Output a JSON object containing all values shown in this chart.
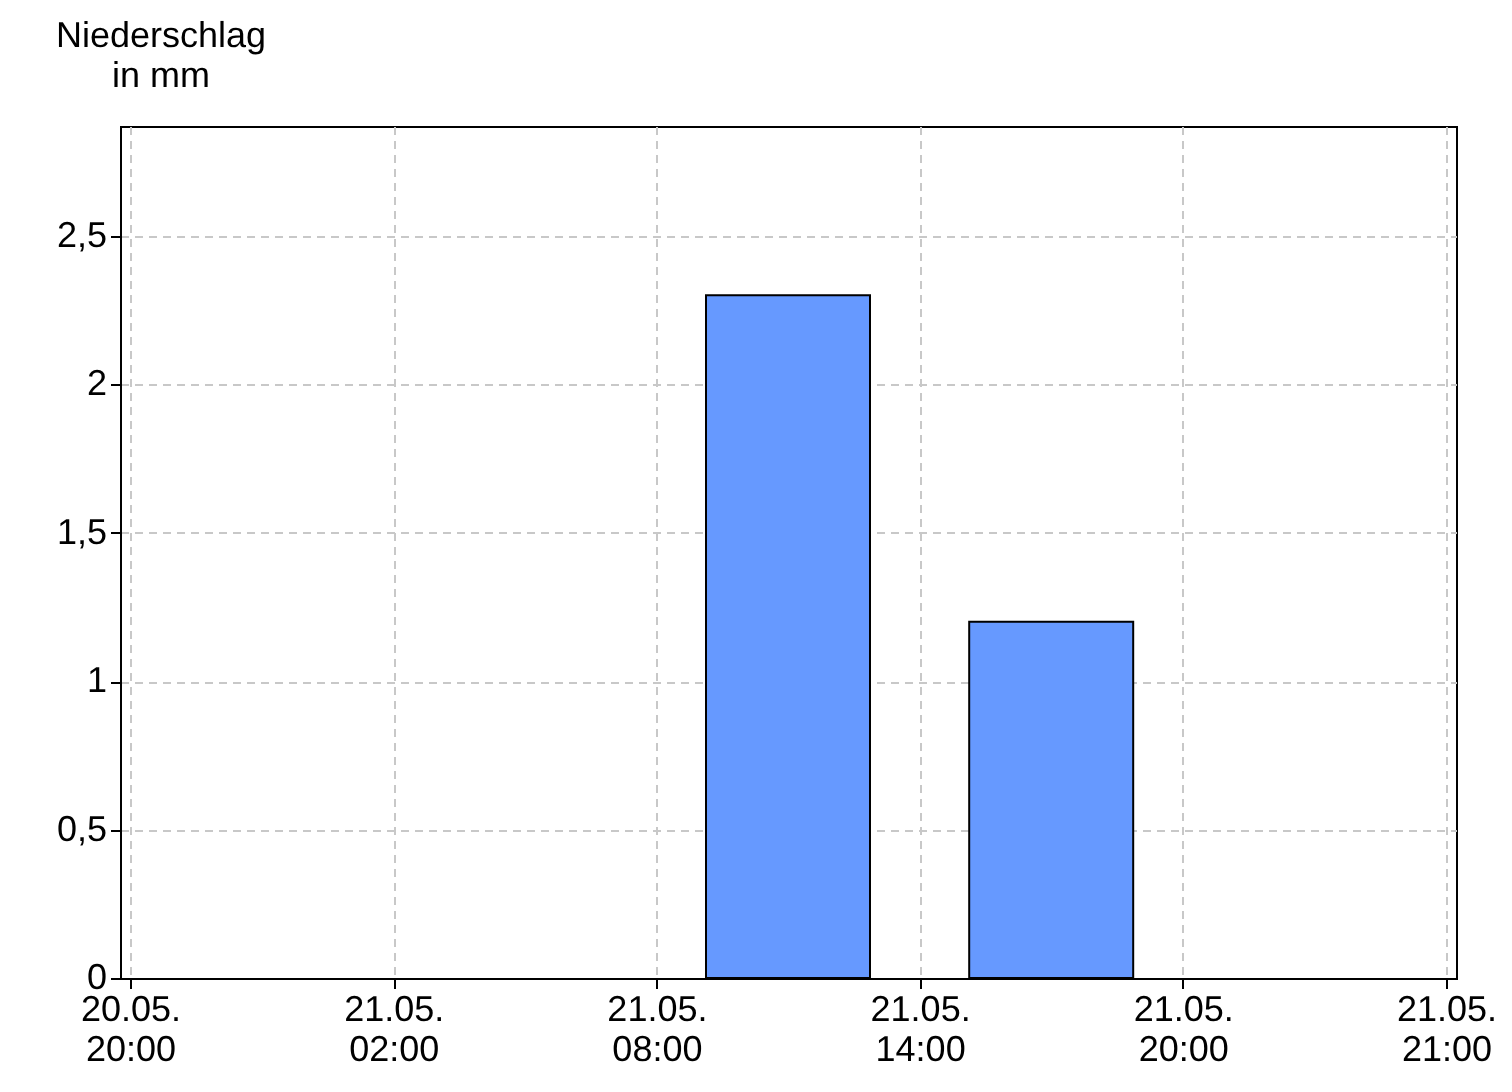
{
  "chart_data": {
    "type": "bar",
    "ylabel": "Niederschlag\nin mm",
    "x": [
      "--05-21T11:00",
      "--05-21T17:00"
    ],
    "series": [
      {
        "color": "#6699ff",
        "values": [
          2.3,
          1.2
        ]
      }
    ],
    "xlim": [
      "--05-20T20:00",
      "--05-22T02:00"
    ],
    "xticks": [
      {
        "value": "--05-20T20:00",
        "label": "20.05.\n20:00"
      },
      {
        "value": "--05-21T02:00",
        "label": "21.05.\n02:00"
      },
      {
        "value": "--05-21T08:00",
        "label": "21.05.\n08:00"
      },
      {
        "value": "--05-21T14:00",
        "label": "21.05.\n14:00"
      },
      {
        "value": "--05-21T20:00",
        "label": "21.05.\n20:00"
      },
      {
        "value": "--05-22T02:00",
        "label": "21.05.\n21:00"
      }
    ],
    "ylim": [
      0,
      2.87
    ],
    "yticks": [
      0,
      {
        "value": 0.5,
        "label": "0,5"
      },
      1,
      {
        "value": 1.5,
        "label": "1,5"
      },
      2,
      {
        "value": 2.5,
        "label": "2,5"
      }
    ],
    "grid": true
  }
}
